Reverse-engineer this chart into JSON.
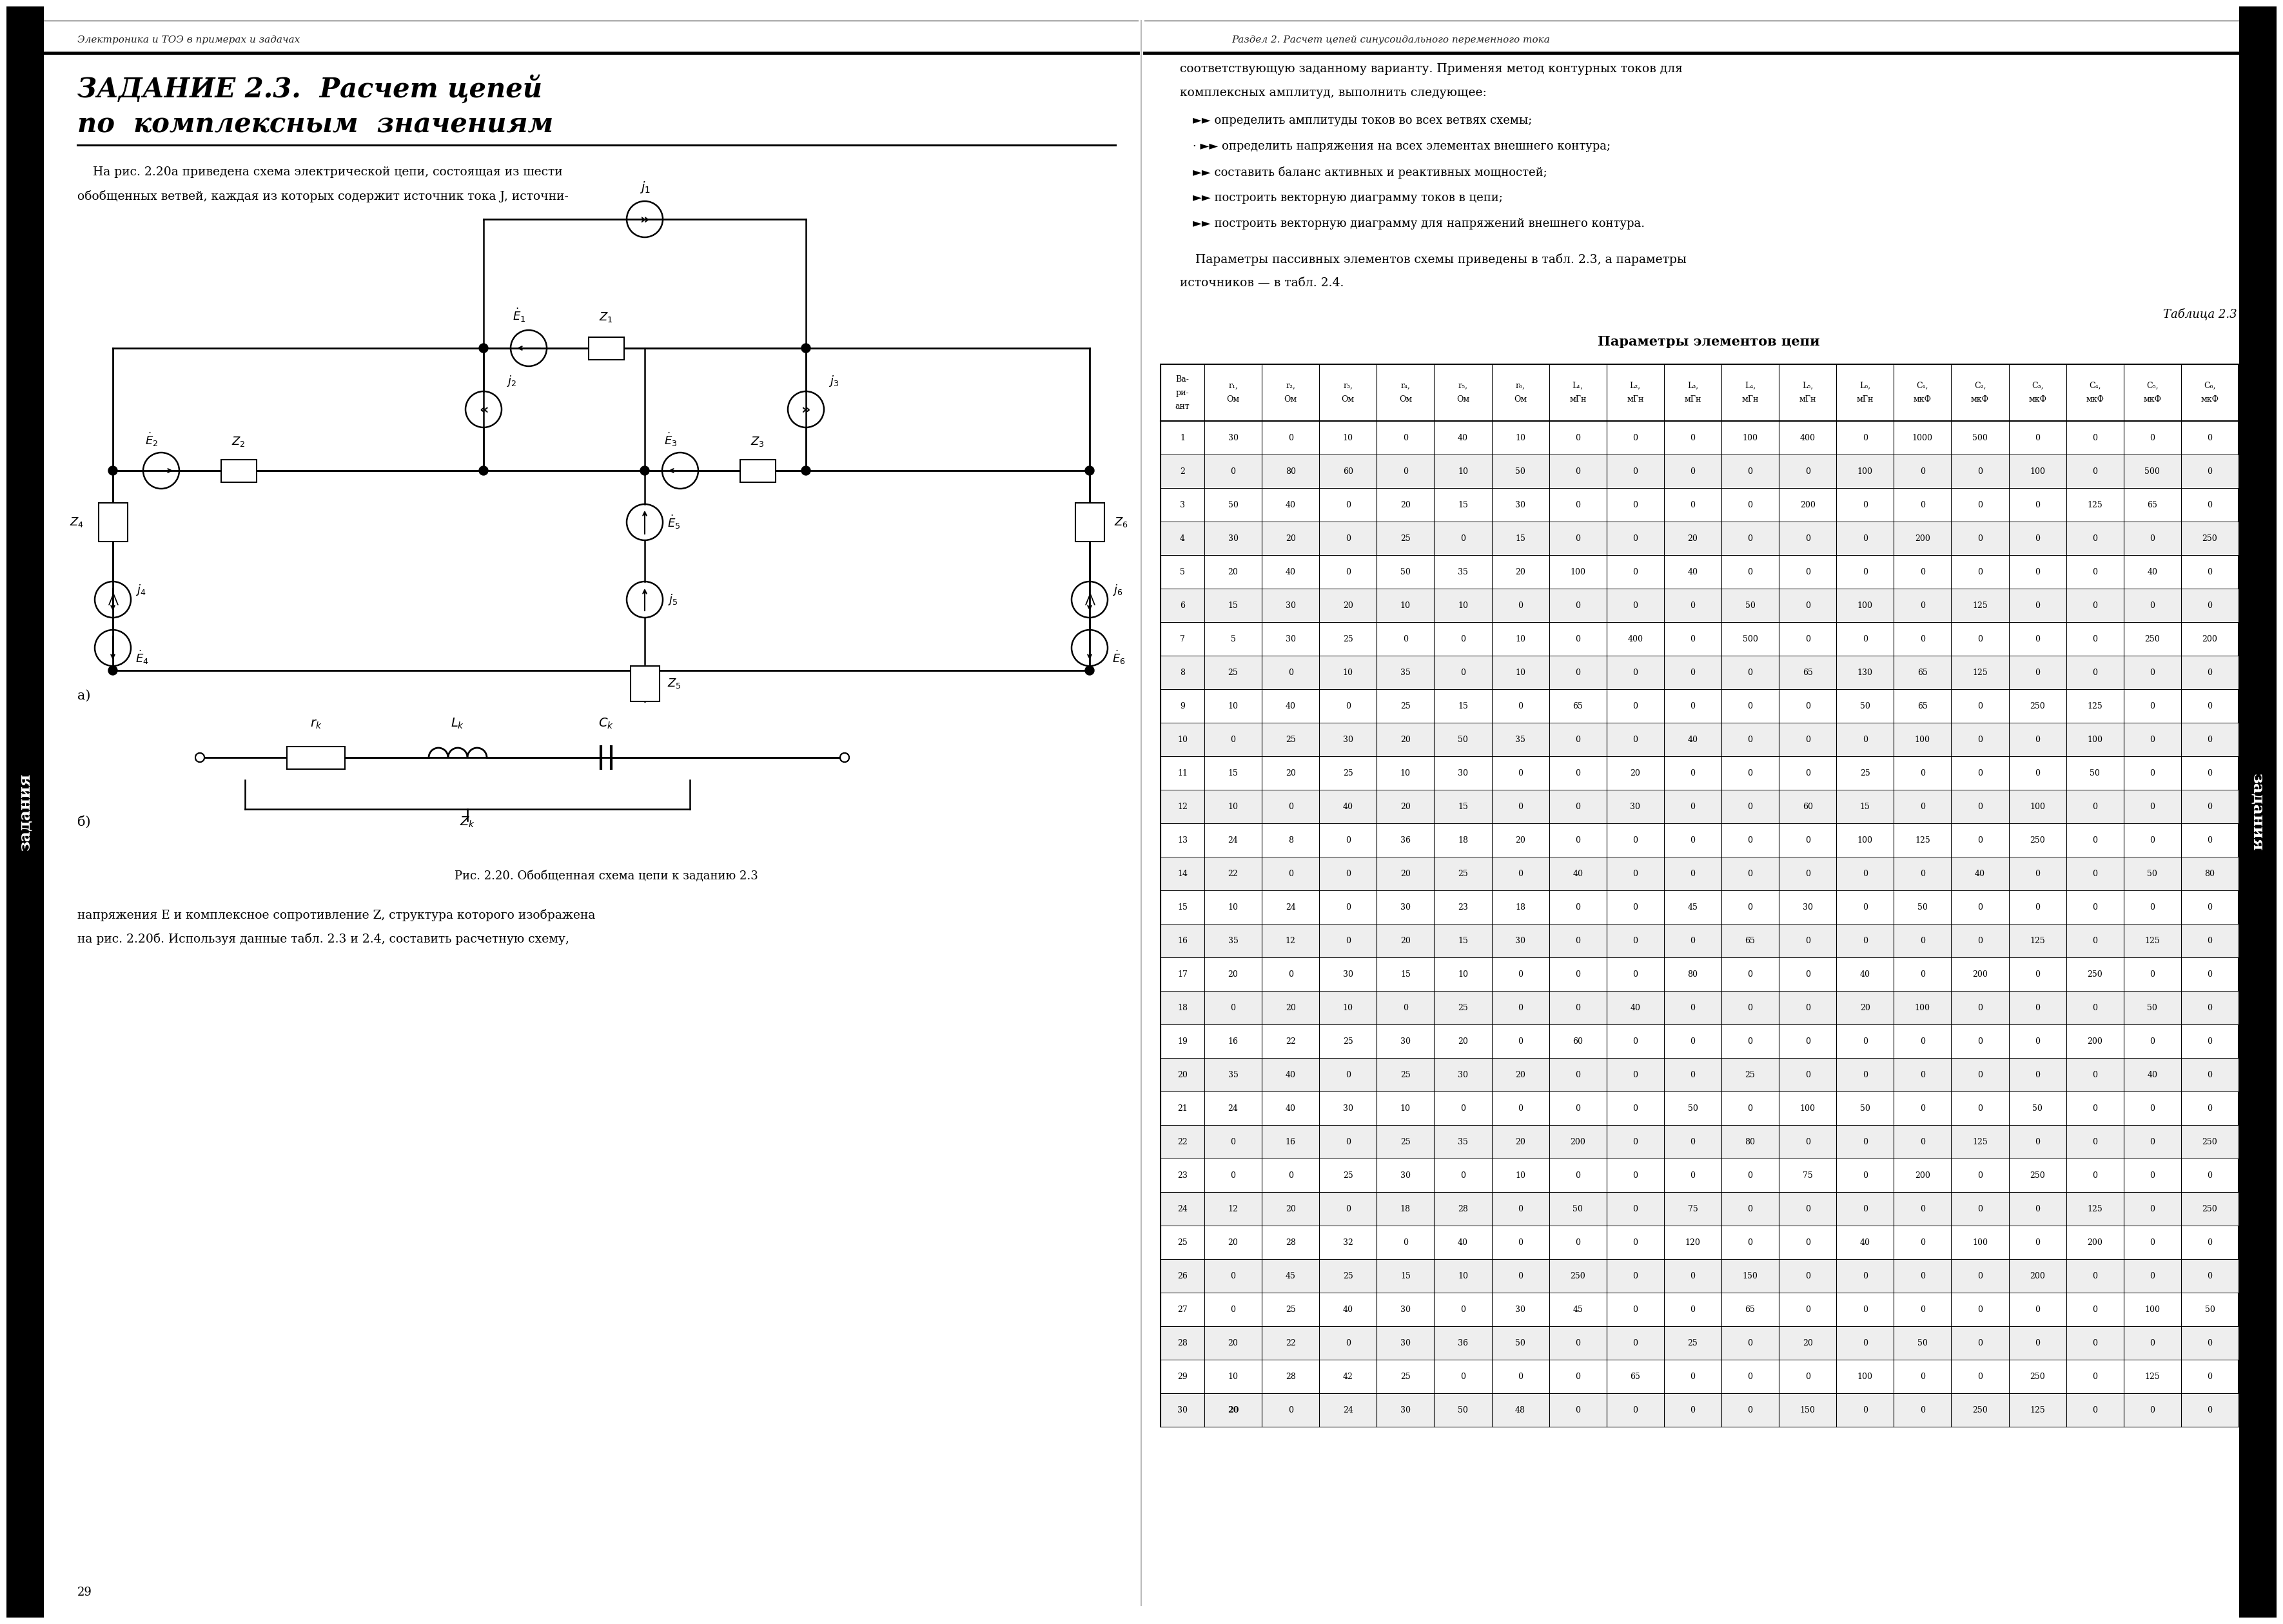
{
  "page_header_left": "Электроника и ТОЭ в примерах и задачах",
  "page_header_right": "Раздел 2. Расчет цепей синусоидального переменного тока",
  "left_title_1": "ЗАДАНИЕ 2.3.  Расчет цепей",
  "left_title_2": "по  комплексным  значениям",
  "left_text1": "    На рис. 2.20а приведена схема электрической цепи, состоящая из шести",
  "left_text2": "обобщенных ветвей, каждая из которых содержит источник тока J, источни-",
  "right_intro1": "соответствующую заданному варианту. Применяя метод контурных токов для",
  "right_intro2": "комплексных амплитуд, выполнить следующее:",
  "bullets": [
    "►► определить амплитуды токов во всех ветвях схемы;",
    "· ►► определить напряжения на всех элементах внешнего контура;",
    "►► составить баланс активных и реактивных мощностей;",
    "►► построить векторную диаграмму токов в цепи;",
    "►► построить векторную диаграмму для напряжений внешнего контура."
  ],
  "right_para1": "    Параметры пассивных элементов схемы приведены в табл. 2.3, а параметры",
  "right_para2": "источников — в табл. 2.4.",
  "table_caption": "Таблица 2.3",
  "table_title": "Параметры элементов цепи",
  "fig_caption": "Рис. 2.20. Обобщенная схема цепи к заданию 2.3",
  "fig_label_a": "а)",
  "fig_label_b": "б)",
  "bottom_text1": "напряжения E и комплексное сопротивление Z, структура которого изображена",
  "bottom_text2": "на рис. 2.20б. Используя данные табл. 2.3 и 2.4, составить расчетную схему,",
  "page_number": "29",
  "sidebar_text": "задания",
  "table_data": [
    [
      1,
      30,
      0,
      10,
      0,
      40,
      10,
      0,
      0,
      0,
      100,
      400,
      0,
      1000,
      500,
      0,
      0,
      0,
      0
    ],
    [
      2,
      0,
      80,
      60,
      0,
      10,
      50,
      0,
      0,
      0,
      0,
      0,
      100,
      0,
      0,
      100,
      0,
      500,
      0
    ],
    [
      3,
      50,
      40,
      0,
      20,
      15,
      30,
      0,
      0,
      0,
      0,
      200,
      0,
      0,
      0,
      0,
      125,
      65,
      0
    ],
    [
      4,
      30,
      20,
      0,
      25,
      0,
      15,
      0,
      0,
      20,
      0,
      0,
      0,
      200,
      0,
      0,
      0,
      0,
      250
    ],
    [
      5,
      20,
      40,
      0,
      50,
      35,
      20,
      100,
      0,
      40,
      0,
      0,
      0,
      0,
      0,
      0,
      0,
      40,
      0
    ],
    [
      6,
      15,
      30,
      20,
      10,
      10,
      0,
      0,
      0,
      0,
      50,
      0,
      100,
      0,
      125,
      0,
      0,
      0,
      0
    ],
    [
      7,
      5,
      30,
      25,
      0,
      0,
      10,
      0,
      400,
      0,
      500,
      0,
      0,
      0,
      0,
      0,
      0,
      250,
      200
    ],
    [
      8,
      25,
      0,
      10,
      35,
      0,
      10,
      0,
      0,
      0,
      0,
      65,
      130,
      65,
      125,
      0,
      0,
      0,
      0
    ],
    [
      9,
      10,
      40,
      0,
      25,
      15,
      0,
      65,
      0,
      0,
      0,
      0,
      50,
      65,
      0,
      250,
      125,
      0,
      0
    ],
    [
      10,
      0,
      25,
      30,
      20,
      50,
      35,
      0,
      0,
      40,
      0,
      0,
      0,
      100,
      0,
      0,
      100,
      0,
      0
    ],
    [
      11,
      15,
      20,
      25,
      10,
      30,
      0,
      0,
      20,
      0,
      0,
      0,
      25,
      0,
      0,
      0,
      50,
      0,
      0
    ],
    [
      12,
      10,
      0,
      40,
      20,
      15,
      0,
      0,
      30,
      0,
      0,
      60,
      15,
      0,
      0,
      100,
      0,
      0,
      0
    ],
    [
      13,
      24,
      8,
      0,
      36,
      18,
      20,
      0,
      0,
      0,
      0,
      0,
      100,
      125,
      0,
      250,
      0,
      0,
      0
    ],
    [
      14,
      22,
      0,
      0,
      20,
      25,
      0,
      40,
      0,
      0,
      0,
      0,
      0,
      0,
      40,
      0,
      0,
      50,
      80
    ],
    [
      15,
      10,
      24,
      0,
      30,
      23,
      18,
      0,
      0,
      45,
      0,
      30,
      0,
      50,
      0,
      0,
      0,
      0,
      0
    ],
    [
      16,
      35,
      12,
      0,
      20,
      15,
      30,
      0,
      0,
      0,
      65,
      0,
      0,
      0,
      0,
      125,
      0,
      125,
      0
    ],
    [
      17,
      20,
      0,
      30,
      15,
      10,
      0,
      0,
      0,
      80,
      0,
      0,
      40,
      0,
      200,
      0,
      250,
      0,
      0
    ],
    [
      18,
      0,
      20,
      10,
      0,
      25,
      0,
      0,
      40,
      0,
      0,
      0,
      20,
      100,
      0,
      0,
      0,
      50,
      0
    ],
    [
      19,
      16,
      22,
      25,
      30,
      20,
      0,
      60,
      0,
      0,
      0,
      0,
      0,
      0,
      0,
      0,
      200,
      0,
      0
    ],
    [
      20,
      35,
      40,
      0,
      25,
      30,
      20,
      0,
      0,
      0,
      25,
      0,
      0,
      0,
      0,
      0,
      0,
      40,
      0
    ],
    [
      21,
      24,
      40,
      30,
      10,
      0,
      0,
      0,
      0,
      50,
      0,
      100,
      50,
      0,
      0,
      50,
      0,
      0,
      0
    ],
    [
      22,
      0,
      16,
      0,
      25,
      35,
      20,
      200,
      0,
      0,
      80,
      0,
      0,
      0,
      125,
      0,
      0,
      0,
      250
    ],
    [
      23,
      0,
      0,
      25,
      30,
      0,
      10,
      0,
      0,
      0,
      0,
      75,
      0,
      200,
      0,
      250,
      0,
      0,
      0
    ],
    [
      24,
      12,
      20,
      0,
      18,
      28,
      0,
      50,
      0,
      75,
      0,
      0,
      0,
      0,
      0,
      0,
      125,
      0,
      250
    ],
    [
      25,
      20,
      28,
      32,
      0,
      40,
      0,
      0,
      0,
      120,
      0,
      0,
      40,
      0,
      100,
      0,
      200,
      0,
      0
    ],
    [
      26,
      0,
      45,
      25,
      15,
      10,
      0,
      250,
      0,
      0,
      150,
      0,
      0,
      0,
      0,
      200,
      0,
      0,
      0
    ],
    [
      27,
      0,
      25,
      40,
      30,
      0,
      30,
      45,
      0,
      0,
      65,
      0,
      0,
      0,
      0,
      0,
      0,
      100,
      50
    ],
    [
      28,
      20,
      22,
      0,
      30,
      36,
      50,
      0,
      0,
      25,
      0,
      20,
      0,
      50,
      0,
      0,
      0,
      0,
      0
    ],
    [
      29,
      10,
      28,
      42,
      25,
      0,
      0,
      0,
      65,
      0,
      0,
      0,
      100,
      0,
      0,
      250,
      0,
      125,
      0
    ],
    [
      30,
      20,
      0,
      24,
      30,
      50,
      48,
      0,
      0,
      0,
      0,
      150,
      0,
      0,
      250,
      125,
      0,
      0,
      0
    ]
  ]
}
